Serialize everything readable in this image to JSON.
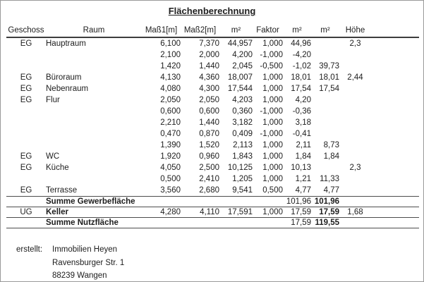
{
  "page": {
    "title": "Flächenberechnung"
  },
  "colors": {
    "text": "#1d1d1d",
    "header_rule": "#3d3d3d",
    "row_rule": "#4c4c4c",
    "page_border": "#9a9a9a",
    "background": "#ffffff"
  },
  "table": {
    "headers": [
      "Geschoss",
      "Raum",
      "Maß1[m]",
      "Maß2[m]",
      "m²",
      "Faktor",
      "m²",
      "m²",
      "Höhe"
    ],
    "column_keys": [
      "geschoss",
      "raum",
      "mass1",
      "mass2",
      "m2",
      "faktor",
      "m2_result",
      "m2_sum",
      "hoehe"
    ],
    "rows": [
      {
        "kind": "data",
        "geschoss": "EG",
        "raum": "Hauptraum",
        "mass1": "6,100",
        "mass2": "7,370",
        "m2": "44,957",
        "faktor": "1,000",
        "m2_result": "44,96",
        "m2_sum": "",
        "hoehe": "2,3",
        "rule_below": false
      },
      {
        "kind": "data",
        "geschoss": "",
        "raum": "",
        "mass1": "2,100",
        "mass2": "2,000",
        "m2": "4,200",
        "faktor": "-1,000",
        "m2_result": "-4,20",
        "m2_sum": "",
        "hoehe": "",
        "rule_below": false
      },
      {
        "kind": "data",
        "geschoss": "",
        "raum": "",
        "mass1": "1,420",
        "mass2": "1,440",
        "m2": "2,045",
        "faktor": "-0,500",
        "m2_result": "-1,02",
        "m2_sum": "39,73",
        "hoehe": "",
        "rule_below": false
      },
      {
        "kind": "data",
        "geschoss": "EG",
        "raum": "Büroraum",
        "mass1": "4,130",
        "mass2": "4,360",
        "m2": "18,007",
        "faktor": "1,000",
        "m2_result": "18,01",
        "m2_sum": "18,01",
        "hoehe": "2,44",
        "rule_below": false
      },
      {
        "kind": "data",
        "geschoss": "EG",
        "raum": "Nebenraum",
        "mass1": "4,080",
        "mass2": "4,300",
        "m2": "17,544",
        "faktor": "1,000",
        "m2_result": "17,54",
        "m2_sum": "17,54",
        "hoehe": "",
        "rule_below": false
      },
      {
        "kind": "data",
        "geschoss": "EG",
        "raum": "Flur",
        "mass1": "2,050",
        "mass2": "2,050",
        "m2": "4,203",
        "faktor": "1,000",
        "m2_result": "4,20",
        "m2_sum": "",
        "hoehe": "",
        "rule_below": false
      },
      {
        "kind": "data",
        "geschoss": "",
        "raum": "",
        "mass1": "0,600",
        "mass2": "0,600",
        "m2": "0,360",
        "faktor": "-1,000",
        "m2_result": "-0,36",
        "m2_sum": "",
        "hoehe": "",
        "rule_below": false
      },
      {
        "kind": "data",
        "geschoss": "",
        "raum": "",
        "mass1": "2,210",
        "mass2": "1,440",
        "m2": "3,182",
        "faktor": "1,000",
        "m2_result": "3,18",
        "m2_sum": "",
        "hoehe": "",
        "rule_below": false
      },
      {
        "kind": "data",
        "geschoss": "",
        "raum": "",
        "mass1": "0,470",
        "mass2": "0,870",
        "m2": "0,409",
        "faktor": "-1,000",
        "m2_result": "-0,41",
        "m2_sum": "",
        "hoehe": "",
        "rule_below": false
      },
      {
        "kind": "data",
        "geschoss": "",
        "raum": "",
        "mass1": "1,390",
        "mass2": "1,520",
        "m2": "2,113",
        "faktor": "1,000",
        "m2_result": "2,11",
        "m2_sum": "8,73",
        "hoehe": "",
        "rule_below": false
      },
      {
        "kind": "data",
        "geschoss": "EG",
        "raum": "WC",
        "mass1": "1,920",
        "mass2": "0,960",
        "m2": "1,843",
        "faktor": "1,000",
        "m2_result": "1,84",
        "m2_sum": "1,84",
        "hoehe": "",
        "rule_below": false
      },
      {
        "kind": "data",
        "geschoss": "EG",
        "raum": "Küche",
        "mass1": "4,050",
        "mass2": "2,500",
        "m2": "10,125",
        "faktor": "1,000",
        "m2_result": "10,13",
        "m2_sum": "",
        "hoehe": "2,3",
        "rule_below": false
      },
      {
        "kind": "data",
        "geschoss": "",
        "raum": "",
        "mass1": "0,500",
        "mass2": "2,410",
        "m2": "1,205",
        "faktor": "1,000",
        "m2_result": "1,21",
        "m2_sum": "11,33",
        "hoehe": "",
        "rule_below": false
      },
      {
        "kind": "data",
        "geschoss": "EG",
        "raum": "Terrasse",
        "mass1": "3,560",
        "mass2": "2,680",
        "m2": "9,541",
        "faktor": "0,500",
        "m2_result": "4,77",
        "m2_sum": "4,77",
        "hoehe": "",
        "rule_below": true
      },
      {
        "kind": "sum",
        "geschoss": "",
        "raum": "Summe Gewerbefläche",
        "mass1": "",
        "mass2": "",
        "m2": "",
        "faktor": "",
        "m2_result": "101,96",
        "m2_sum": "101,96",
        "hoehe": "",
        "rule_below": true
      },
      {
        "kind": "item-bold",
        "geschoss": "UG",
        "raum": "Keller",
        "mass1": "4,280",
        "mass2": "4,110",
        "m2": "17,591",
        "faktor": "1,000",
        "m2_result": "17,59",
        "m2_sum": "17,59",
        "hoehe": "1,68",
        "rule_below": true
      },
      {
        "kind": "sum",
        "geschoss": "",
        "raum": "Summe Nutzfläche",
        "mass1": "",
        "mass2": "",
        "m2": "",
        "faktor": "",
        "m2_result": "17,59",
        "m2_sum": "119,55",
        "hoehe": "",
        "rule_below": true
      }
    ]
  },
  "footer": {
    "label": "erstellt:",
    "company": "Immobilien Heyen",
    "street": "Ravensburger Str. 1",
    "city": "88239 Wangen"
  }
}
